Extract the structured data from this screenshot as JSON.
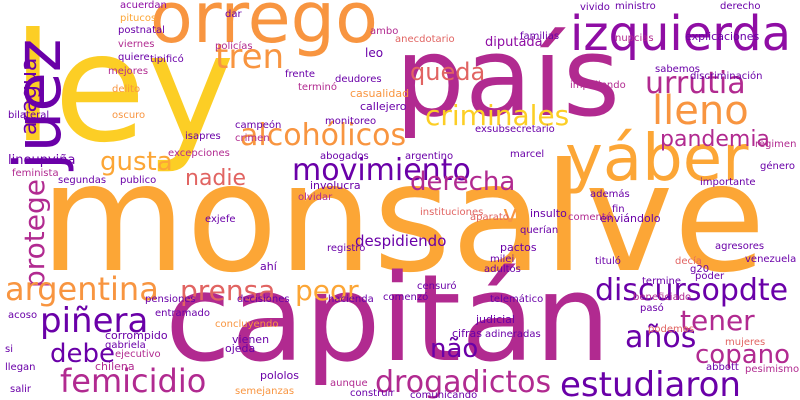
{
  "words": [
    "ley",
    "país",
    "monsalve",
    "capitán",
    "orrego",
    "izquierda",
    "juez",
    "yáber",
    "aragua",
    "tren",
    "queda",
    "urrutia",
    "lleno",
    "pandemia",
    "criminales",
    "alcohólicos",
    "gusta",
    "movimiento",
    "nadie",
    "derecha",
    "protege",
    "argentina",
    "prensa",
    "peor",
    "discursopdte",
    "piñera",
    "tener",
    "años",
    "debe",
    "não",
    "copano",
    "femicidio",
    "drogadictos",
    "estudiaron",
    "v",
    "despidiendo",
    "lineupviña",
    "acuerdan",
    "pitucos",
    "postnatal",
    "viernes",
    "quiere",
    "mejores",
    "delito",
    "oscuro",
    "bilateral",
    "tipificó",
    "isapres",
    "publico",
    "segundas",
    "feminista",
    "exjefe",
    "excepciones",
    "ambo",
    "leo",
    "deudores",
    "casualidad",
    "callejero",
    "monitoreo",
    "campeón",
    "crimen",
    "frente",
    "terminó",
    "policías",
    "dar",
    "abogados",
    "argentino",
    "marcel",
    "exsubsecretario",
    "diputada",
    "vivido",
    "ministro",
    "derecho",
    "explicaciones",
    "nupcias",
    "familias",
    "anecdotario",
    "sabemos",
    "impidiendo",
    "discriminación",
    "régimen",
    "género",
    "importante",
    "además",
    "insulto",
    "comentó",
    "fin",
    "enviándolo",
    "pactos",
    "querían",
    "involucra",
    "olvidar",
    "registro",
    "milei",
    "adultos",
    "telemático",
    "tituló",
    "g20",
    "agresores",
    "venezuela",
    "decía",
    "poder",
    "termine",
    "beneficiado",
    "pasó",
    "mujeres",
    "abbott",
    "pesimismo",
    "podemos",
    "censuró",
    "comenzó",
    "hacienda",
    "decisiones",
    "pensiones",
    "entramado",
    "concluyendo",
    "judicial",
    "adineradas",
    "cifras",
    "vienen",
    "ojeda",
    "corrompido",
    "ejecutivo",
    "gabriela",
    "chilena",
    "pololos",
    "semejanzas",
    "aunque",
    "construir",
    "comunicando",
    "llegan",
    "salir",
    "si",
    "acoso",
    "ahí",
    "instituciones",
    "aparato"
  ]
}
